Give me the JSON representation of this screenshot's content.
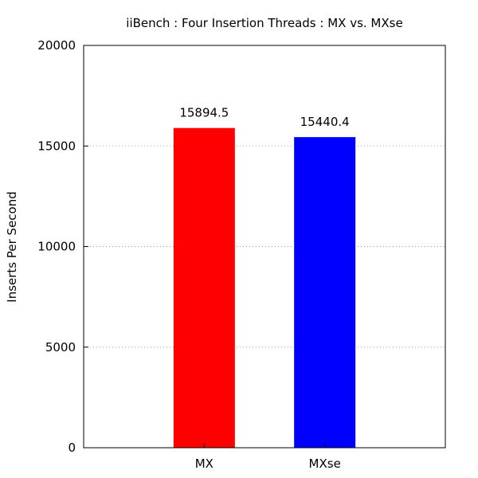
{
  "chart_data": {
    "type": "bar",
    "title": "iiBench : Four Insertion Threads : MX vs. MXse",
    "xlabel": "",
    "ylabel": "Inserts Per Second",
    "categories": [
      "MX",
      "MXse"
    ],
    "values": [
      15894.5,
      15440.4
    ],
    "value_labels": [
      "15894.5",
      "15440.4"
    ],
    "colors": [
      "#ff0000",
      "#0000ff"
    ],
    "ylim": [
      0,
      20000
    ],
    "yticks": [
      0,
      5000,
      10000,
      15000,
      20000
    ],
    "grid": true,
    "legend": "none"
  }
}
